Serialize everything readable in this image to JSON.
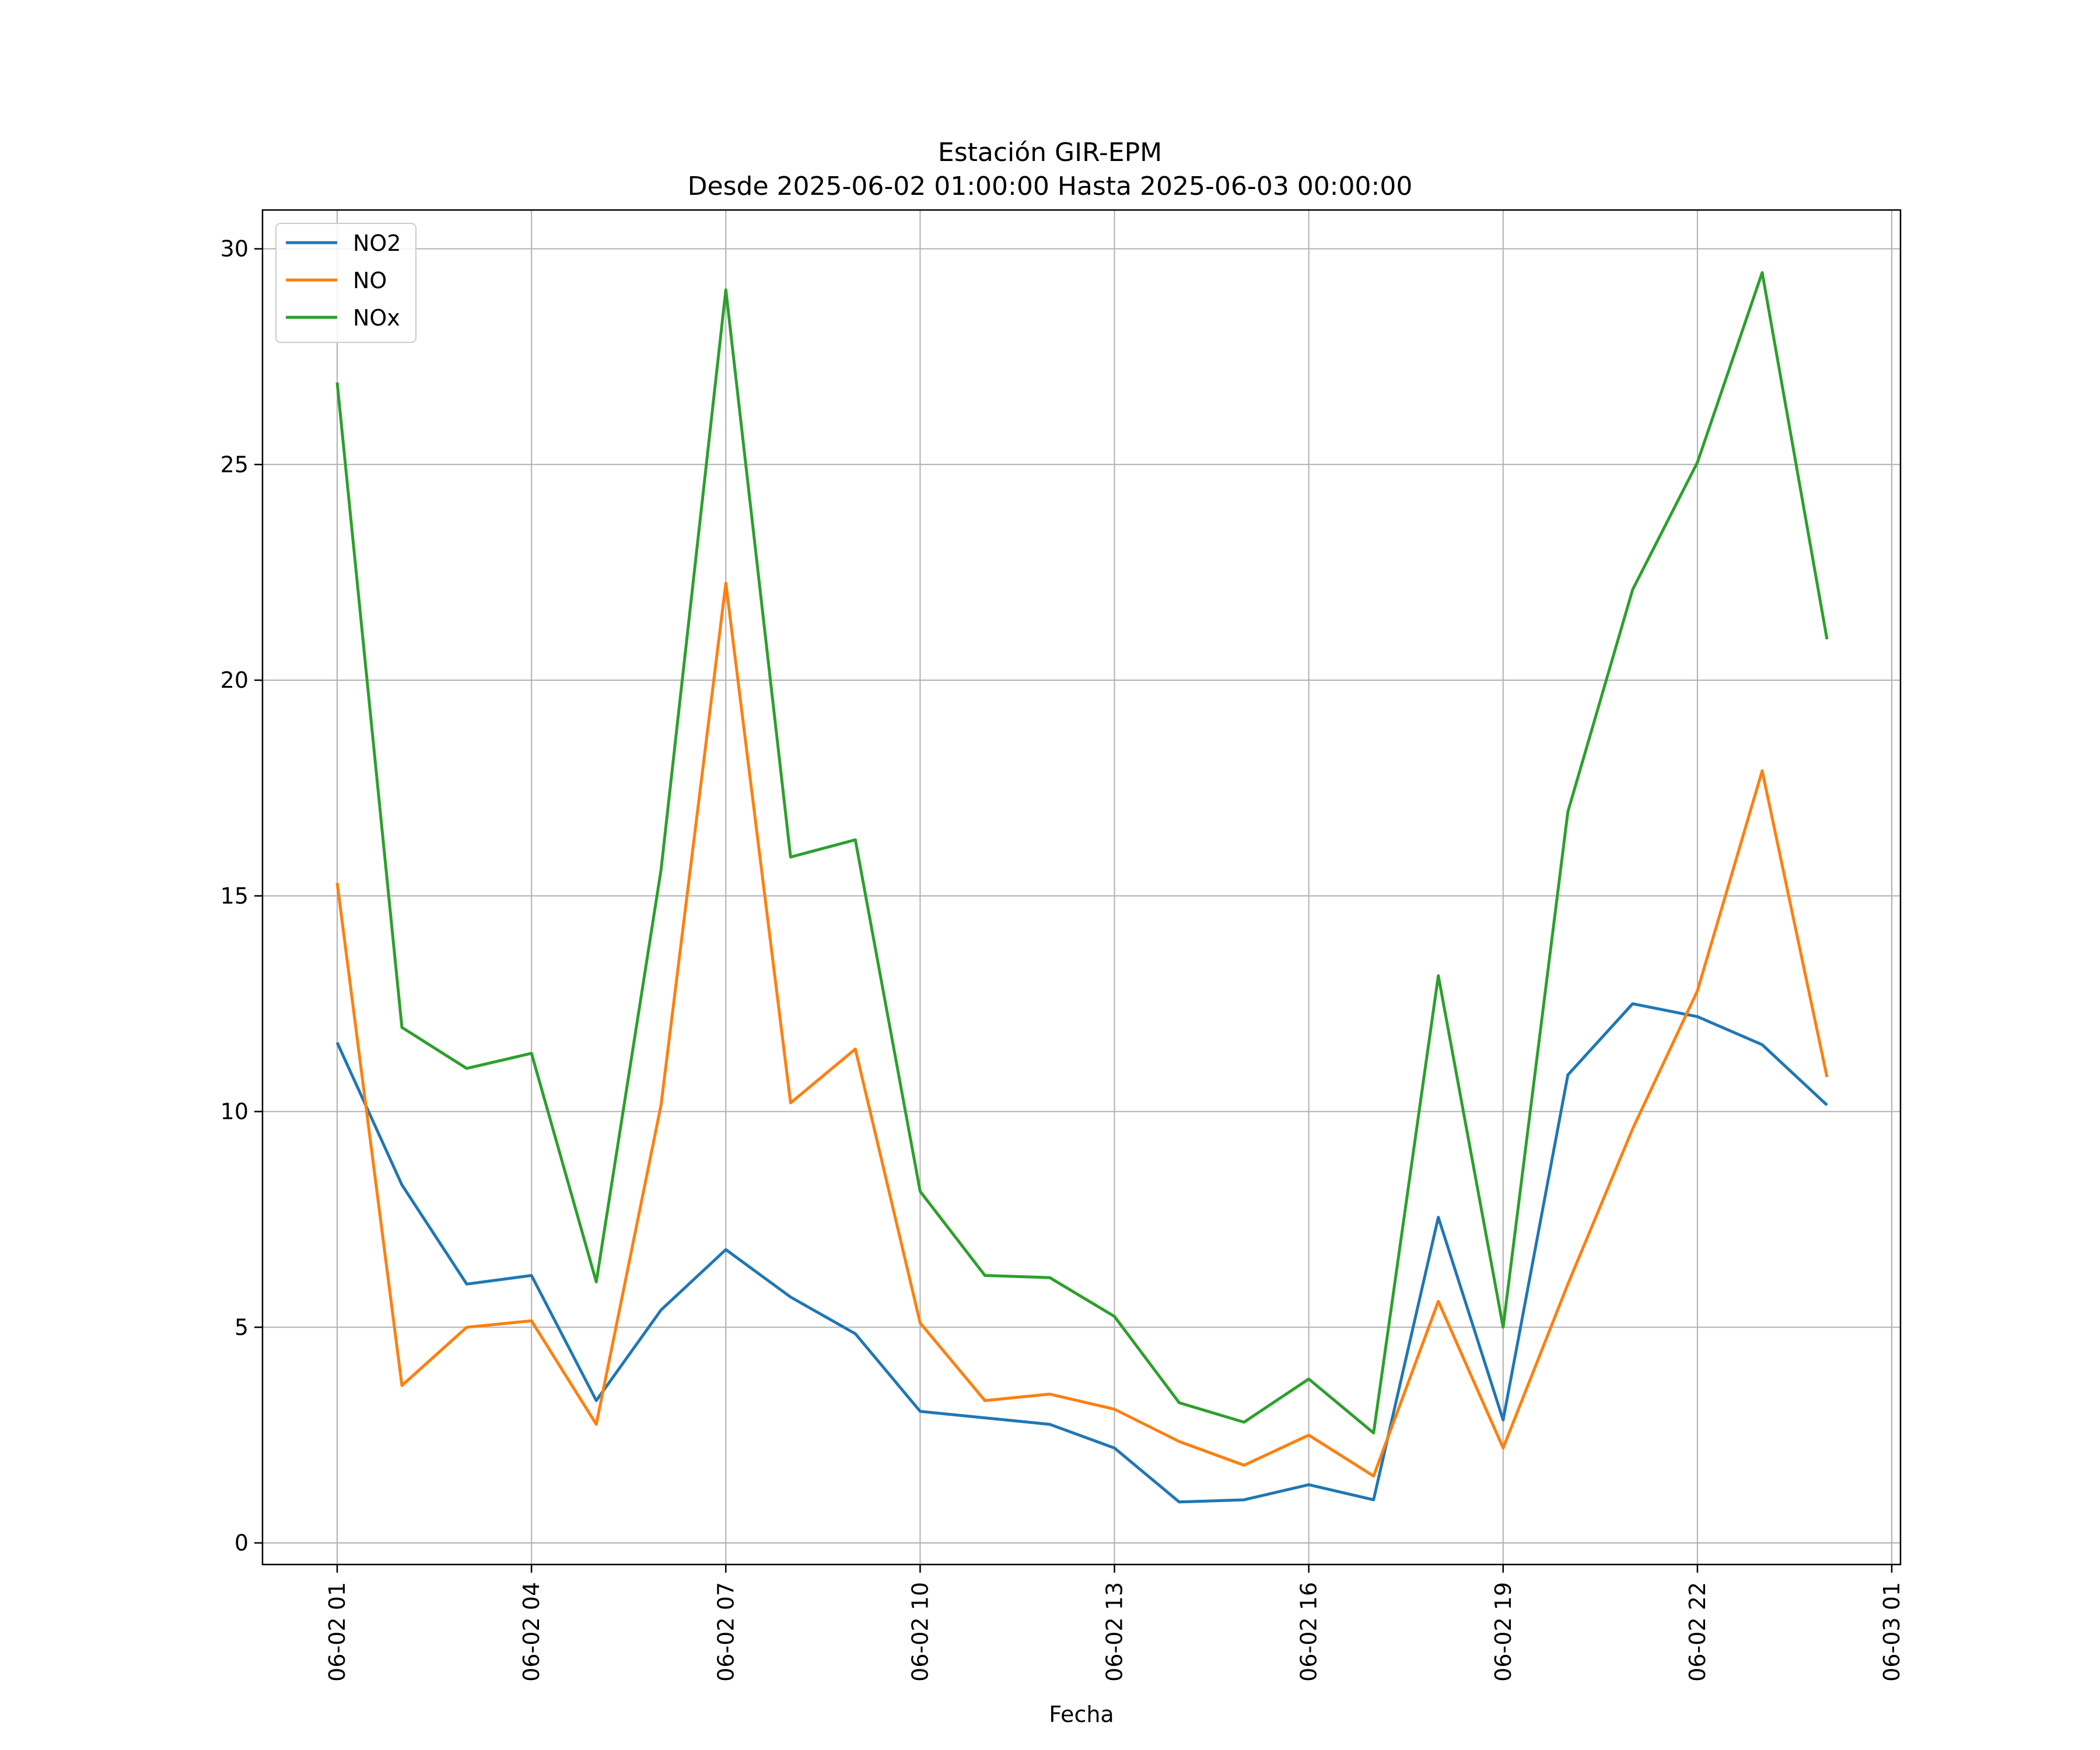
{
  "chart_data": {
    "type": "line",
    "title": "Estación GIR-EPM",
    "subtitle": "Desde 2025-06-02 01:00:00 Hasta 2025-06-03 00:00:00",
    "xlabel": "Fecha",
    "ylabel": "",
    "x": [
      "06-02 01",
      "06-02 02",
      "06-02 03",
      "06-02 04",
      "06-02 05",
      "06-02 06",
      "06-02 07",
      "06-02 08",
      "06-02 09",
      "06-02 10",
      "06-02 11",
      "06-02 12",
      "06-02 13",
      "06-02 14",
      "06-02 15",
      "06-02 16",
      "06-02 17",
      "06-02 18",
      "06-02 19",
      "06-02 20",
      "06-02 21",
      "06-02 22",
      "06-02 23",
      "06-03 00"
    ],
    "xticks": [
      "06-02 01",
      "06-02 04",
      "06-02 07",
      "06-02 10",
      "06-02 13",
      "06-02 16",
      "06-02 19",
      "06-02 22",
      "06-03 01"
    ],
    "yticks": [
      "0",
      "5",
      "10",
      "15",
      "20",
      "25",
      "30"
    ],
    "ylim": [
      -0.5,
      30.9
    ],
    "grid": true,
    "legend_position": "top-left",
    "series": [
      {
        "name": "NO2",
        "color": "#1f77b4",
        "values": [
          11.6,
          8.3,
          6.0,
          6.2,
          3.3,
          5.4,
          6.8,
          5.7,
          4.85,
          3.05,
          2.9,
          2.75,
          2.2,
          0.95,
          1.0,
          1.35,
          1.0,
          7.55,
          2.85,
          10.85,
          12.5,
          12.2,
          11.55,
          10.15
        ]
      },
      {
        "name": "NO",
        "color": "#ff7f0e",
        "values": [
          15.3,
          3.65,
          5.0,
          5.15,
          2.75,
          10.15,
          22.25,
          10.2,
          11.45,
          5.1,
          3.3,
          3.45,
          3.1,
          2.35,
          1.8,
          2.5,
          1.55,
          5.6,
          2.2,
          6.0,
          9.6,
          12.8,
          17.9,
          10.8
        ]
      },
      {
        "name": "NOx",
        "color": "#2ca02c",
        "values": [
          26.9,
          11.95,
          11.0,
          11.35,
          6.05,
          15.6,
          29.05,
          15.9,
          16.3,
          8.15,
          6.2,
          6.15,
          5.25,
          3.25,
          2.8,
          3.8,
          2.55,
          13.15,
          5.0,
          16.95,
          22.1,
          25.05,
          29.45,
          20.95
        ]
      }
    ]
  }
}
